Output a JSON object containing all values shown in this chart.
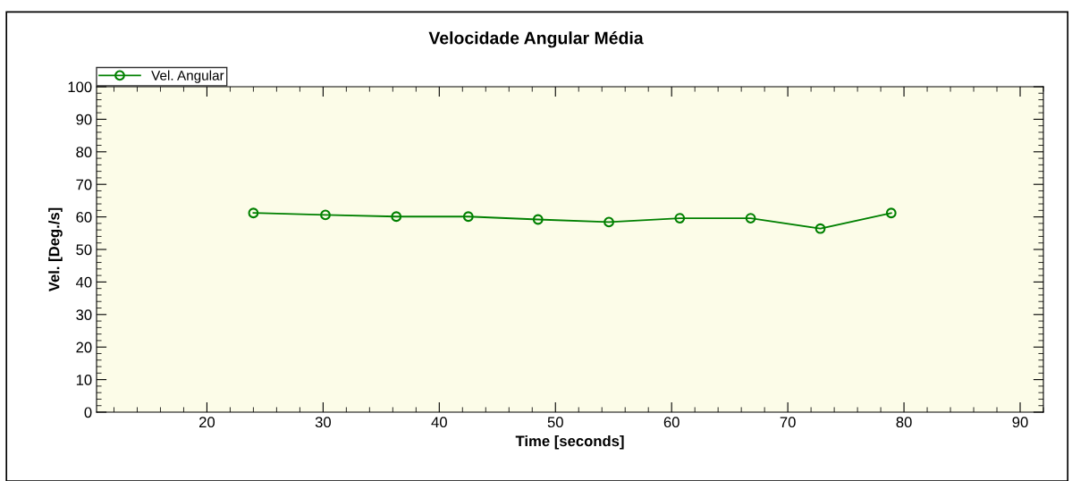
{
  "chart_data": {
    "type": "line",
    "title": "Velocidade Angular Média",
    "xlabel": "Time [seconds]",
    "ylabel": "Vel. [Deg./s]",
    "x": [
      24.0,
      30.2,
      36.3,
      42.5,
      48.5,
      54.6,
      60.7,
      66.8,
      72.8,
      78.9
    ],
    "series": [
      {
        "name": "Vel. Angular",
        "color": "#008000",
        "values": [
          61.2,
          60.6,
          60.1,
          60.1,
          59.2,
          58.4,
          59.6,
          59.6,
          56.4,
          61.2
        ]
      }
    ],
    "xlim": [
      10.5,
      92
    ],
    "xticks": [
      20,
      30,
      40,
      50,
      60,
      70,
      80,
      90
    ],
    "ylim": [
      0,
      100
    ],
    "yticks": [
      0,
      10,
      20,
      30,
      40,
      50,
      60,
      70,
      80,
      90,
      100
    ],
    "marker": "circle",
    "line_style": "solid",
    "legend": "top left",
    "grid": false
  }
}
